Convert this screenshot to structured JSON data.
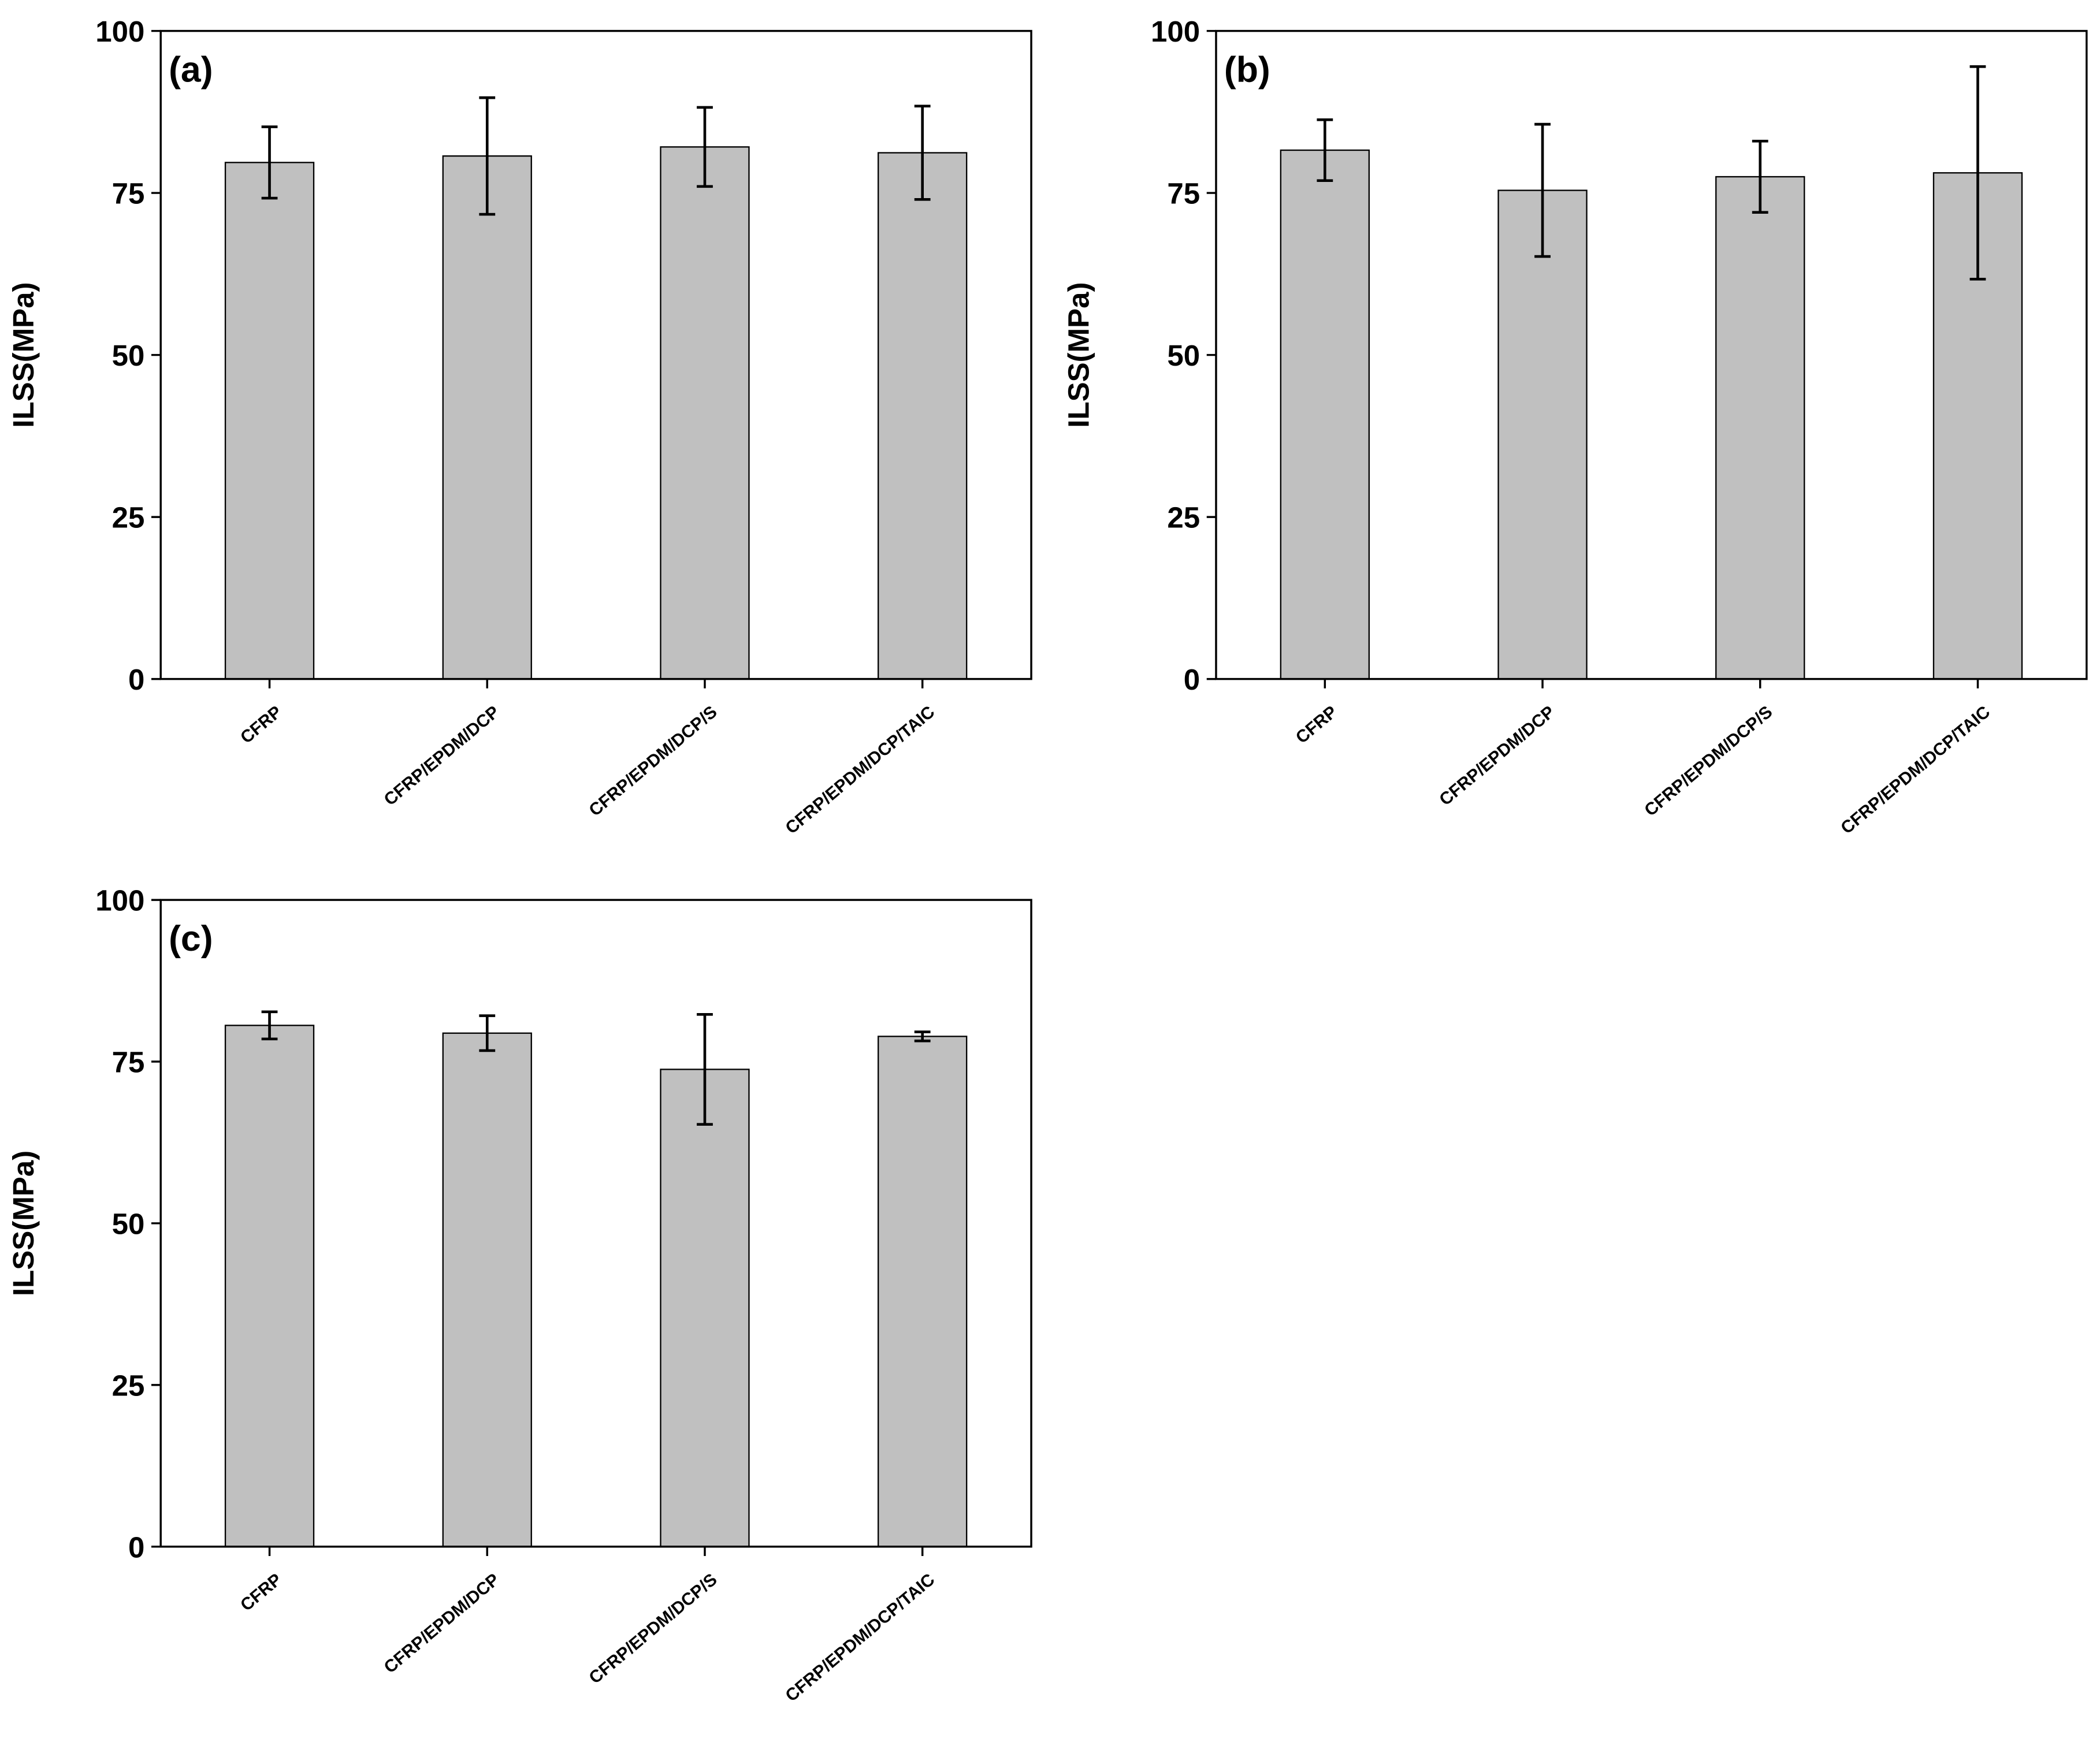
{
  "chart_data": [
    {
      "type": "bar",
      "title": "(a)",
      "ylabel": "ILSS(MPa)",
      "categories": [
        "CFRP",
        "CFRP/EPDM/DCP",
        "CFRP/EPDM/DCP/S",
        "CFRP/EPDM/DCP/TAIC"
      ],
      "values": [
        79.7,
        80.7,
        82.1,
        81.2
      ],
      "errors": [
        5.5,
        9.0,
        6.1,
        7.2
      ],
      "color": "#c0c0c0",
      "ylim": [
        0,
        100
      ],
      "yticks": [
        0,
        25,
        50,
        75,
        100
      ]
    },
    {
      "type": "bar",
      "title": "(b)",
      "ylabel": "ILSS(MPa)",
      "categories": [
        "CFRP",
        "CFRP/EPDM/DCP",
        "CFRP/EPDM/DCP/S",
        "CFRP/EPDM/DCP/TAIC"
      ],
      "values": [
        81.6,
        75.4,
        77.5,
        78.1
      ],
      "errors": [
        4.7,
        10.2,
        5.5,
        16.4
      ],
      "color": "#c0c0c0",
      "ylim": [
        0,
        100
      ],
      "yticks": [
        0,
        25,
        50,
        75,
        100
      ]
    },
    {
      "type": "bar",
      "title": "(c)",
      "ylabel": "ILSS(MPa)",
      "categories": [
        "CFRP",
        "CFRP/EPDM/DCP",
        "CFRP/EPDM/DCP/S",
        "CFRP/EPDM/DCP/TAIC"
      ],
      "values": [
        80.6,
        79.4,
        73.8,
        78.9
      ],
      "errors": [
        2.1,
        2.7,
        8.5,
        0.7
      ],
      "color": "#c0c0c0",
      "ylim": [
        0,
        100
      ],
      "yticks": [
        0,
        25,
        50,
        75,
        100
      ]
    }
  ]
}
